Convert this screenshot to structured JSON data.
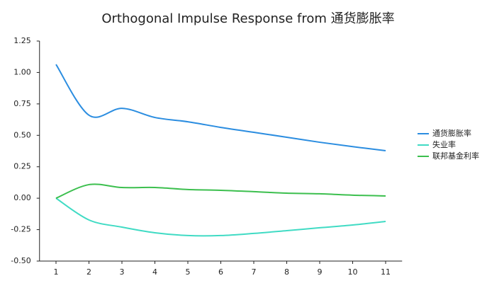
{
  "chart_data": {
    "type": "line",
    "title": "Orthogonal Impulse Response from 通货膨胀率",
    "x": [
      1,
      2,
      3,
      4,
      5,
      6,
      7,
      8,
      9,
      10,
      11
    ],
    "xlim": [
      0.5,
      11.5
    ],
    "xticks": [
      1,
      2,
      3,
      4,
      5,
      6,
      7,
      8,
      9,
      10,
      11
    ],
    "ylim": [
      -0.5,
      1.25
    ],
    "yticks": [
      {
        "value": -0.5,
        "label": "-0.50"
      },
      -0.25,
      {
        "value": 0,
        "label": "0.00"
      },
      0.25,
      {
        "value": 0.5,
        "label": "0.50"
      },
      0.75,
      {
        "value": 1,
        "label": "1.00"
      },
      1.25
    ],
    "grid": false,
    "legend": "right",
    "series": [
      {
        "name": "通货膨胀率",
        "color": "#2b8de0",
        "values": [
          1.064,
          0.66,
          0.715,
          0.642,
          0.608,
          0.563,
          0.524,
          0.485,
          0.445,
          0.41,
          0.378
        ]
      },
      {
        "name": "失业率",
        "color": "#40dbc4",
        "values": [
          0,
          -0.173,
          -0.23,
          -0.275,
          -0.297,
          -0.297,
          -0.28,
          -0.258,
          -0.235,
          -0.213,
          -0.185
        ]
      },
      {
        "name": "联邦基金利率",
        "color": "#3cbf4e",
        "values": [
          0,
          0.108,
          0.085,
          0.085,
          0.069,
          0.063,
          0.052,
          0.04,
          0.035,
          0.024,
          0.018
        ]
      }
    ]
  }
}
